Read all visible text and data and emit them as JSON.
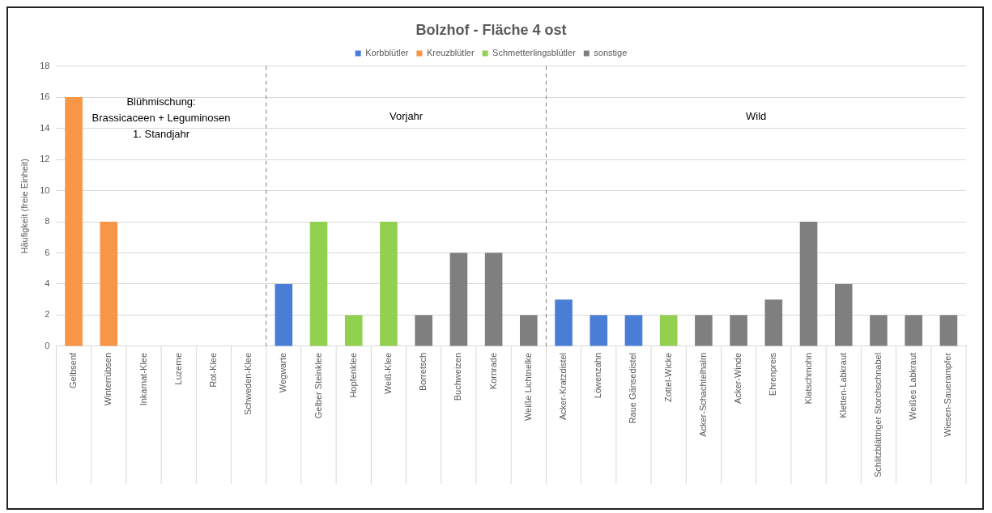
{
  "chart_data": {
    "type": "bar",
    "title": "Bolzhof - Fläche 4 ost",
    "ylabel": "Häufigkeit (freie Einheit)",
    "categories": [
      "Gelbsenf",
      "Winterrübsen",
      "Inkarnat-Klee",
      "Luzerne",
      "Rot-Klee",
      "Schweden-Klee",
      "Wegwarte",
      "Gelber Steinklee",
      "Hopfenklee",
      "Weiß-Klee",
      "Borretsch",
      "Buchweizen",
      "Kornrade",
      "Weiße Lichtnelke",
      "Acker-Kratzdistel",
      "Löwenzahn",
      "Raue Gänsedistel",
      "Zottel-Wicke",
      "Acker-Schachtelhalm",
      "Acker-Winde",
      "Ehrenpreis",
      "Klatschmohn",
      "Kletten-Labkraut",
      "Schlitzblättriger Storchschnabel",
      "Weißes Labkraut",
      "Wiesen-Sauerampfer"
    ],
    "stacked": true,
    "series": [
      {
        "name": "Korbblütler",
        "color": "#4a7ed6",
        "values": [
          null,
          null,
          null,
          null,
          null,
          null,
          4,
          null,
          null,
          null,
          null,
          null,
          null,
          null,
          3,
          2,
          2,
          null,
          null,
          null,
          null,
          null,
          null,
          null,
          null,
          null
        ]
      },
      {
        "name": "Kreuzblütler",
        "color": "#f79646",
        "values": [
          16,
          8,
          null,
          null,
          null,
          null,
          null,
          null,
          null,
          null,
          null,
          null,
          null,
          null,
          null,
          null,
          null,
          null,
          null,
          null,
          null,
          null,
          null,
          null,
          null,
          null
        ]
      },
      {
        "name": "Schmetterlingsblütler",
        "color": "#92d050",
        "values": [
          null,
          null,
          0,
          0,
          0,
          0,
          null,
          8,
          2,
          8,
          null,
          null,
          null,
          null,
          null,
          null,
          null,
          2,
          null,
          null,
          null,
          null,
          null,
          null,
          null,
          null
        ]
      },
      {
        "name": "sonstige",
        "color": "#7f7f7f",
        "values": [
          null,
          null,
          null,
          null,
          null,
          null,
          null,
          null,
          null,
          null,
          2,
          6,
          6,
          2,
          null,
          null,
          null,
          null,
          2,
          2,
          3,
          8,
          4,
          2,
          2,
          2
        ]
      }
    ],
    "ylim": [
      0,
      18
    ],
    "yticks": [
      0,
      2,
      4,
      6,
      8,
      10,
      12,
      14,
      16,
      18
    ],
    "grid": "y",
    "legend": "top",
    "annotations": [
      "Blühmischung:\nBrassicaceen + Leguminosen\n1. Standjahr",
      "Vorjahr",
      "Wild"
    ]
  }
}
